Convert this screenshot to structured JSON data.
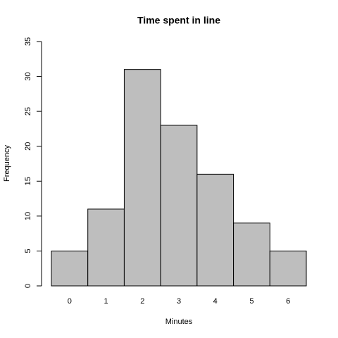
{
  "chart_data": {
    "type": "bar",
    "title": "Time spent in line",
    "xlabel": "Minutes",
    "ylabel": "Frequency",
    "categories": [
      "0",
      "1",
      "2",
      "3",
      "4",
      "5",
      "6"
    ],
    "values": [
      5,
      11,
      31,
      23,
      16,
      9,
      5
    ],
    "color": "#bebebe",
    "ylim": [
      0,
      35
    ],
    "yticks": [
      0,
      5,
      10,
      15,
      20,
      25,
      30,
      35
    ],
    "grid": false
  }
}
